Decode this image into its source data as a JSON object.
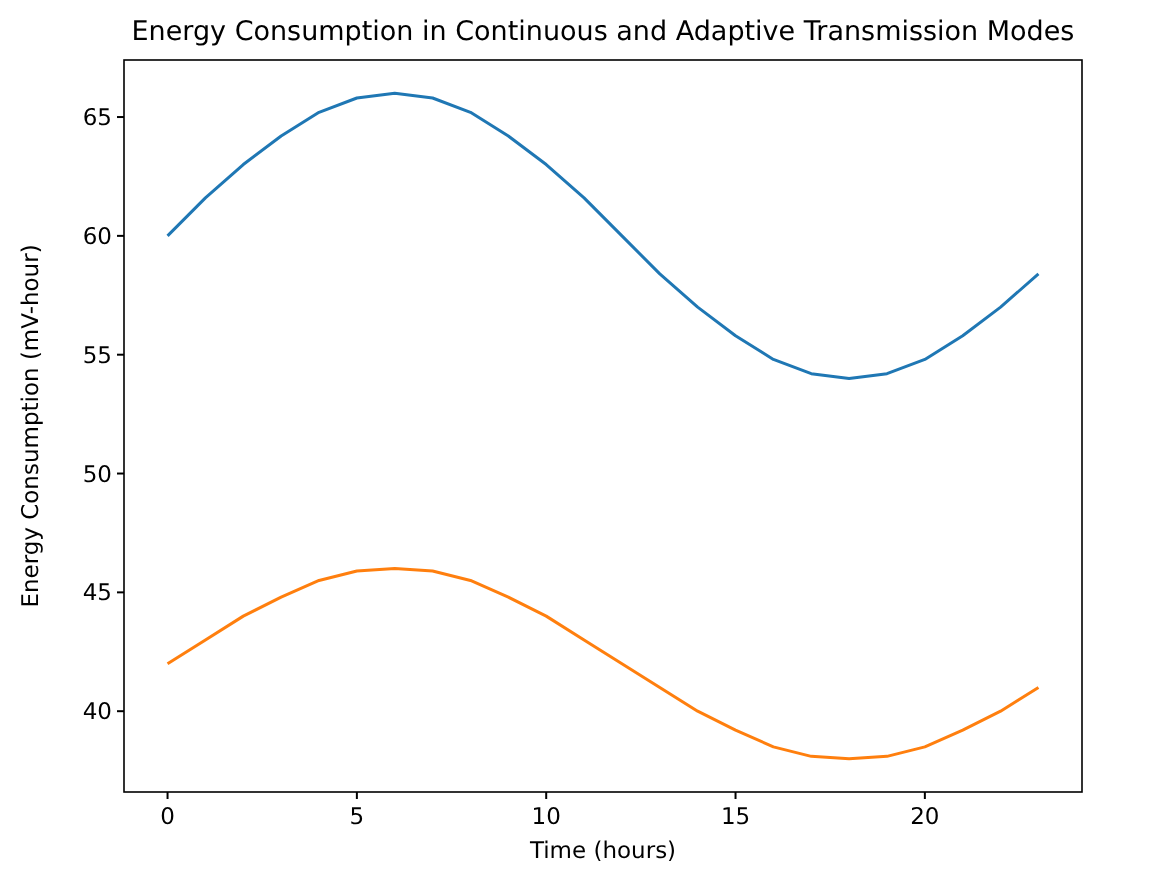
{
  "chart_data": {
    "type": "line",
    "title": "Energy Consumption in Continuous and Adaptive Transmission Modes",
    "xlabel": "Time (hours)",
    "ylabel": "Energy Consumption (mV-hour)",
    "x": [
      0,
      1,
      2,
      3,
      4,
      5,
      6,
      7,
      8,
      9,
      10,
      11,
      12,
      13,
      14,
      15,
      16,
      17,
      18,
      19,
      20,
      21,
      22,
      23
    ],
    "series": [
      {
        "color": "#1f77b4",
        "values": [
          60,
          61.6,
          63,
          64.2,
          65.2,
          65.8,
          66,
          65.8,
          65.2,
          64.2,
          63,
          61.6,
          60,
          58.4,
          57,
          55.8,
          54.8,
          54.2,
          54,
          54.2,
          54.8,
          55.8,
          57,
          58.4
        ]
      },
      {
        "color": "#ff7f0e",
        "values": [
          42,
          43,
          44,
          44.8,
          45.5,
          45.9,
          46,
          45.9,
          45.5,
          44.8,
          44,
          43,
          42,
          41,
          40,
          39.2,
          38.5,
          38.1,
          38,
          38.1,
          38.5,
          39.2,
          40,
          41
        ]
      }
    ],
    "xlim": [
      -1.15,
      24.15
    ],
    "xticks": [
      0,
      5,
      10,
      15,
      20
    ],
    "ylim": [
      36.6,
      67.4
    ],
    "yticks": [
      40,
      45,
      50,
      55,
      60,
      65
    ],
    "marker": "none",
    "line_style": "solid"
  }
}
